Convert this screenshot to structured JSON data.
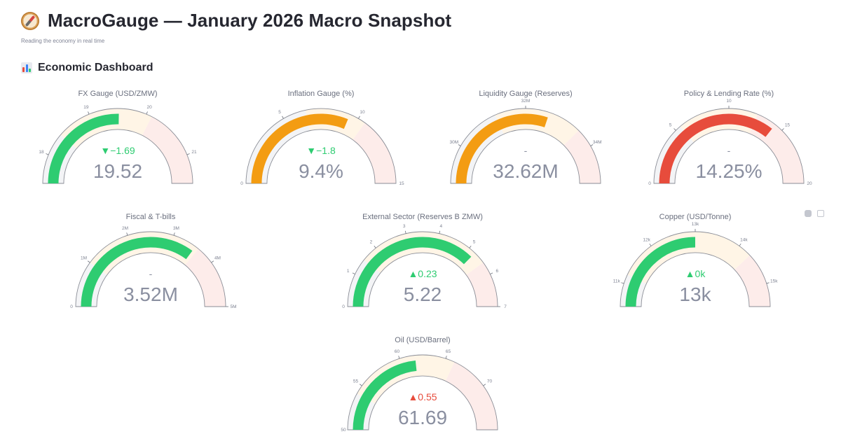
{
  "header": {
    "title": "MacroGauge — January 2026 Macro Snapshot",
    "subtitle": "Reading the economy in real time",
    "section_title": "Economic Dashboard"
  },
  "colors": {
    "green": "#2ecc71",
    "orange": "#f39c12",
    "red": "#e74c3c",
    "zone_low": "#f3f4f6",
    "zone_mid": "#fff5e6",
    "zone_high": "#fdecea",
    "value_text": "#8a8fa0"
  },
  "toolbar": {
    "icons": [
      "camera-icon",
      "fullscreen-icon"
    ]
  },
  "chart_data": [
    {
      "type": "gauge",
      "title": "FX Gauge (USD/ZMW)",
      "min": 17.5,
      "max": 21.5,
      "value": 19.52,
      "value_text": "19.52",
      "delta_text": "▼−1.69",
      "delta_dir": "down",
      "bar_color": "#2ecc71",
      "steps": [
        18.4,
        20.1
      ],
      "ticks": [
        {
          "v": 18,
          "label": "18"
        },
        {
          "v": 19,
          "label": "19"
        },
        {
          "v": 20,
          "label": "20"
        },
        {
          "v": 21,
          "label": "21"
        }
      ],
      "end_labels": []
    },
    {
      "type": "gauge",
      "title": "Inflation Gauge (%)",
      "min": 0,
      "max": 15,
      "value": 9.4,
      "value_text": "9.4%",
      "delta_text": "▼−1.8",
      "delta_dir": "down",
      "bar_color": "#f39c12",
      "steps": [
        6.5,
        10.5
      ],
      "ticks": [
        {
          "v": 5,
          "label": "5"
        },
        {
          "v": 10,
          "label": "10"
        }
      ],
      "end_labels": [
        "0",
        "15"
      ]
    },
    {
      "type": "gauge",
      "title": "Liquidity Gauge (Reserves)",
      "min": 29000000,
      "max": 35000000,
      "value": 32620000,
      "value_text": "32.62M",
      "delta_text": "-",
      "delta_dir": "none",
      "bar_color": "#f39c12",
      "steps": [
        31200000,
        33500000
      ],
      "ticks": [
        {
          "v": 30000000,
          "label": "30M"
        },
        {
          "v": 32000000,
          "label": "32M"
        },
        {
          "v": 34000000,
          "label": "34M"
        }
      ],
      "end_labels": []
    },
    {
      "type": "gauge",
      "title": "Policy & Lending Rate (%)",
      "min": 0,
      "max": 20,
      "value": 14.25,
      "value_text": "14.25%",
      "delta_text": "-",
      "delta_dir": "none",
      "bar_color": "#e74c3c",
      "steps": [
        5.5,
        12.5
      ],
      "ticks": [
        {
          "v": 5,
          "label": "5"
        },
        {
          "v": 10,
          "label": "10"
        },
        {
          "v": 15,
          "label": "15"
        }
      ],
      "end_labels": [
        "0",
        "20"
      ]
    },
    {
      "type": "gauge",
      "title": "Fiscal & T-bills",
      "min": 0,
      "max": 5000000,
      "value": 3520000,
      "value_text": "3.52M",
      "delta_text": "-",
      "delta_dir": "none",
      "bar_color": "#2ecc71",
      "steps": [
        1000000,
        3600000
      ],
      "ticks": [
        {
          "v": 1000000,
          "label": "1M"
        },
        {
          "v": 2000000,
          "label": "2M"
        },
        {
          "v": 3000000,
          "label": "3M"
        },
        {
          "v": 4000000,
          "label": "4M"
        },
        {
          "v": 5000000,
          "label": "5M"
        }
      ],
      "end_labels": [
        "0"
      ]
    },
    {
      "type": "gauge",
      "title": "External Sector (Reserves B ZMW)",
      "min": 0,
      "max": 7,
      "value": 5.22,
      "value_text": "5.22",
      "delta_text": "▲0.23",
      "delta_dir": "up",
      "bar_color": "#2ecc71",
      "steps": [
        1.5,
        5.6
      ],
      "ticks": [
        {
          "v": 1,
          "label": "1"
        },
        {
          "v": 2,
          "label": "2"
        },
        {
          "v": 3,
          "label": "3"
        },
        {
          "v": 4,
          "label": "4"
        },
        {
          "v": 5,
          "label": "5"
        },
        {
          "v": 6,
          "label": "6"
        },
        {
          "v": 7,
          "label": "7"
        }
      ],
      "end_labels": [
        "0"
      ]
    },
    {
      "type": "gauge",
      "title": "Copper (USD/Tonne)",
      "min": 10500,
      "max": 15500,
      "value": 13000,
      "value_text": "13k",
      "delta_text": "▲0k",
      "delta_dir": "up",
      "bar_color": "#2ecc71",
      "steps": [
        11200,
        14300
      ],
      "ticks": [
        {
          "v": 11000,
          "label": "11k"
        },
        {
          "v": 12000,
          "label": "12k"
        },
        {
          "v": 13000,
          "label": "13k"
        },
        {
          "v": 14000,
          "label": "14k"
        },
        {
          "v": 15000,
          "label": "15k"
        }
      ],
      "end_labels": []
    },
    {
      "type": "gauge",
      "title": "Oil (USD/Barrel)",
      "min": 50,
      "max": 75,
      "value": 61.69,
      "value_text": "61.69",
      "delta_text": "▲0.55",
      "delta_dir": "up_bad",
      "bar_color": "#2ecc71",
      "steps": [
        54,
        66
      ],
      "ticks": [
        {
          "v": 55,
          "label": "55"
        },
        {
          "v": 60,
          "label": "60"
        },
        {
          "v": 65,
          "label": "65"
        },
        {
          "v": 70,
          "label": "70"
        }
      ],
      "end_labels": [
        "50"
      ]
    }
  ]
}
